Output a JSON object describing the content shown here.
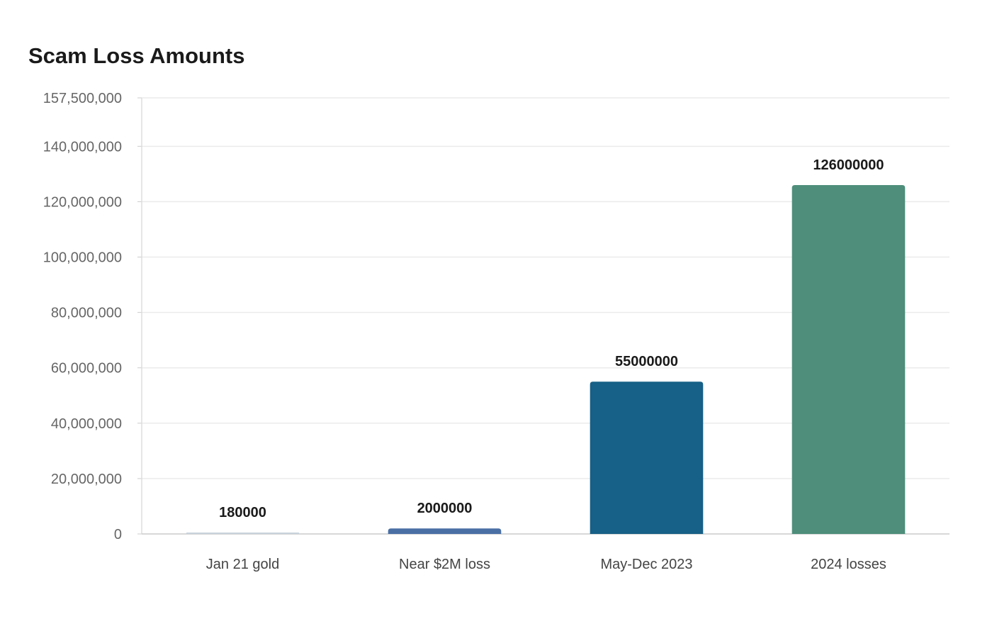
{
  "chart_data": {
    "type": "bar",
    "title": "Scam Loss Amounts",
    "categories": [
      "Jan 21 gold",
      "Near $2M loss",
      "May-Dec 2023",
      "2024 losses"
    ],
    "values": [
      180000,
      2000000,
      55000000,
      126000000
    ],
    "value_labels": [
      "180000",
      "2000000",
      "55000000",
      "126000000"
    ],
    "bar_colors": [
      "#c8d3dc",
      "#4a6fa5",
      "#176087",
      "#4e8e7b"
    ],
    "ylim": [
      0,
      157500000
    ],
    "yticks": [
      0,
      20000000,
      40000000,
      60000000,
      80000000,
      100000000,
      120000000,
      140000000,
      157500000
    ],
    "ytick_labels": [
      "0",
      "20,000,000",
      "40,000,000",
      "60,000,000",
      "80,000,000",
      "100,000,000",
      "120,000,000",
      "140,000,000",
      "157,500,000"
    ],
    "grid": true,
    "legend": false,
    "xlabel": "",
    "ylabel": ""
  }
}
